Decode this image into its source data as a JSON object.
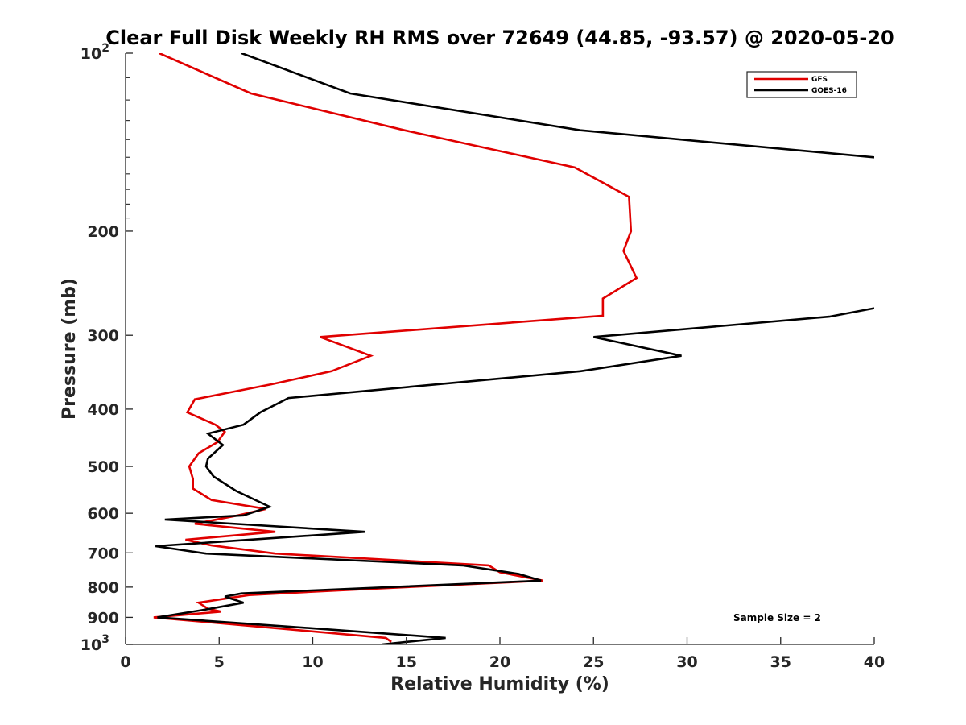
{
  "chart_data": {
    "type": "line",
    "title": "Clear Full Disk Weekly RH RMS over 72649 (44.85, -93.57) @ 2020-05-20",
    "xlabel": "Relative Humidity (%)",
    "ylabel": "Pressure (mb)",
    "xlim": [
      0,
      40
    ],
    "ylim": [
      100,
      1000
    ],
    "y_scale": "log",
    "y_reversed": true,
    "x_ticks": [
      0,
      5,
      10,
      15,
      20,
      25,
      30,
      35,
      40
    ],
    "x_tick_labels": [
      "0",
      "5",
      "10",
      "15",
      "20",
      "25",
      "30",
      "35",
      "40"
    ],
    "y_ticks": [
      100,
      200,
      300,
      400,
      500,
      600,
      700,
      800,
      900,
      1000
    ],
    "y_tick_labels": [
      {
        "base": "10",
        "exp": "2"
      },
      {
        "base": "200"
      },
      {
        "base": "300"
      },
      {
        "base": "400"
      },
      {
        "base": "500"
      },
      {
        "base": "600"
      },
      {
        "base": "700"
      },
      {
        "base": "800"
      },
      {
        "base": "900"
      },
      {
        "base": "10",
        "exp": "3"
      }
    ],
    "grid": false,
    "legend_position": "top-right",
    "annotation": "Sample Size = 2",
    "series": [
      {
        "name": "GFS",
        "color": "#e00000",
        "points": [
          [
            1.8,
            100
          ],
          [
            6.7,
            117
          ],
          [
            14.9,
            135
          ],
          [
            24.0,
            156
          ],
          [
            26.9,
            175
          ],
          [
            27.0,
            200
          ],
          [
            26.6,
            216
          ],
          [
            27.3,
            240
          ],
          [
            25.5,
            260
          ],
          [
            25.5,
            278
          ],
          [
            10.4,
            302
          ],
          [
            13.1,
            325
          ],
          [
            11.0,
            345
          ],
          [
            7.8,
            363
          ],
          [
            3.7,
            385
          ],
          [
            3.3,
            405
          ],
          [
            4.8,
            425
          ],
          [
            5.3,
            437
          ],
          [
            4.9,
            455
          ],
          [
            3.9,
            475
          ],
          [
            3.4,
            500
          ],
          [
            3.6,
            525
          ],
          [
            3.6,
            545
          ],
          [
            4.6,
            570
          ],
          [
            7.5,
            590
          ],
          [
            6.0,
            605
          ],
          [
            3.7,
            625
          ],
          [
            8.0,
            645
          ],
          [
            3.2,
            665
          ],
          [
            4.6,
            680
          ],
          [
            8.0,
            702
          ],
          [
            19.4,
            735
          ],
          [
            20.0,
            755
          ],
          [
            22.3,
            780
          ],
          [
            11.5,
            810
          ],
          [
            6.6,
            825
          ],
          [
            3.9,
            850
          ],
          [
            4.4,
            870
          ],
          [
            5.1,
            880
          ],
          [
            1.5,
            900
          ],
          [
            13.9,
            975
          ],
          [
            14.2,
            990
          ]
        ]
      },
      {
        "name": "GOES-16",
        "color": "#000000",
        "points": [
          [
            6.2,
            100
          ],
          [
            12.0,
            117
          ],
          [
            24.3,
            135
          ],
          [
            40.0,
            150
          ]
        ],
        "points_lower": [
          [
            40.0,
            270
          ],
          [
            37.6,
            279
          ],
          [
            25.0,
            302
          ],
          [
            29.7,
            325
          ],
          [
            24.3,
            345
          ],
          [
            8.7,
            383
          ],
          [
            7.2,
            405
          ],
          [
            6.3,
            425
          ],
          [
            4.4,
            440
          ],
          [
            5.2,
            460
          ],
          [
            4.4,
            485
          ],
          [
            4.3,
            500
          ],
          [
            4.7,
            520
          ],
          [
            5.9,
            550
          ],
          [
            7.7,
            585
          ],
          [
            6.3,
            605
          ],
          [
            2.1,
            615
          ],
          [
            12.8,
            645
          ],
          [
            1.6,
            682
          ],
          [
            4.3,
            702
          ],
          [
            18.0,
            735
          ],
          [
            21.0,
            760
          ],
          [
            22.2,
            780
          ],
          [
            6.2,
            820
          ],
          [
            5.3,
            830
          ],
          [
            6.3,
            850
          ],
          [
            4.1,
            875
          ],
          [
            1.7,
            900
          ],
          [
            10.2,
            940
          ],
          [
            17.1,
            975
          ],
          [
            13.7,
            1000
          ]
        ]
      }
    ]
  }
}
